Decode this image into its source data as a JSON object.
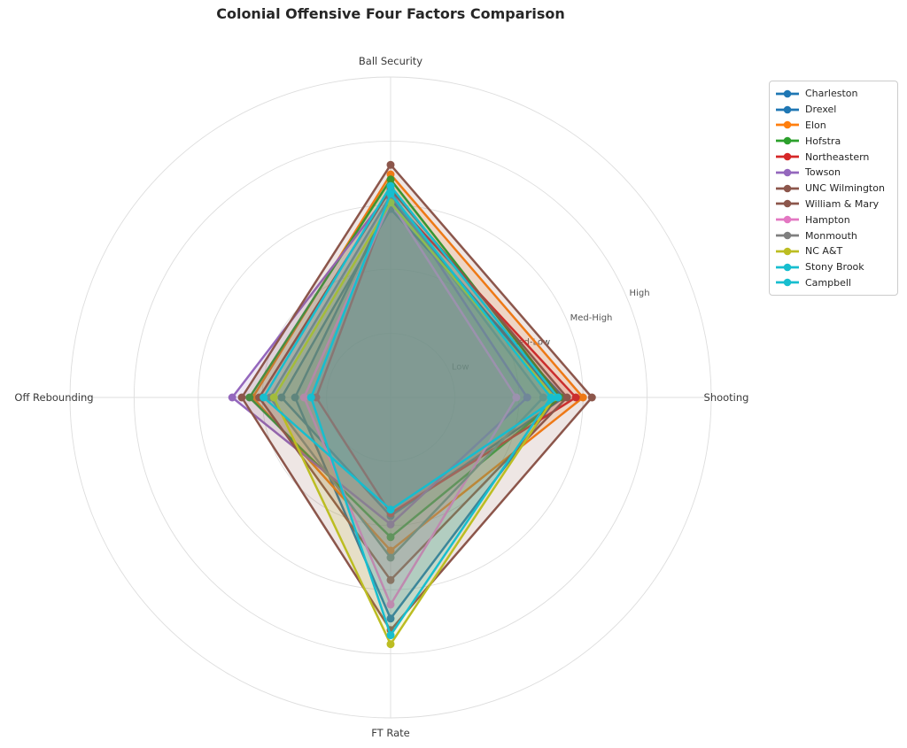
{
  "chart_data": {
    "type": "radar",
    "title": "Colonial Offensive Four Factors Comparison",
    "axes": [
      "Ball Security",
      "Shooting",
      "FT Rate",
      "Off Rebounding"
    ],
    "radial_ticks": {
      "values": [
        1,
        2,
        3,
        4
      ],
      "labels": [
        "Low",
        "Med-Low",
        "Med-High",
        "High"
      ]
    },
    "rmax": 5,
    "grid": true,
    "legend_position": "upper right",
    "series": [
      {
        "name": "Charleston",
        "color": "#1f77b4",
        "values": [
          2.94,
          2.7,
          1.85,
          1.7
        ]
      },
      {
        "name": "Drexel",
        "color": "#1f77b4",
        "values": [
          3.1,
          2.6,
          3.45,
          1.49
        ]
      },
      {
        "name": "Elon",
        "color": "#ff7f0e",
        "values": [
          3.48,
          3.0,
          2.39,
          2.15
        ]
      },
      {
        "name": "Hofstra",
        "color": "#2ca02c",
        "values": [
          3.4,
          2.65,
          2.18,
          2.2
        ]
      },
      {
        "name": "Northeastern",
        "color": "#d62728",
        "values": [
          3.12,
          2.89,
          1.81,
          1.16
        ]
      },
      {
        "name": "Towson",
        "color": "#9467bd",
        "values": [
          3.22,
          2.13,
          1.98,
          2.47
        ]
      },
      {
        "name": "UNC Wilmington",
        "color": "#8c564b",
        "values": [
          3.63,
          3.14,
          3.63,
          2.32
        ]
      },
      {
        "name": "William & Mary",
        "color": "#8c564b",
        "values": [
          3.25,
          2.75,
          2.85,
          2.05
        ]
      },
      {
        "name": "Hampton",
        "color": "#e377c2",
        "values": [
          3.05,
          1.96,
          3.23,
          1.35
        ]
      },
      {
        "name": "Monmouth",
        "color": "#7f7f7f",
        "values": [
          3.15,
          2.38,
          2.5,
          1.88
        ]
      },
      {
        "name": "NC A&T",
        "color": "#bcbd22",
        "values": [
          3.04,
          2.55,
          3.85,
          1.82
        ]
      },
      {
        "name": "Stony Brook",
        "color": "#17becf",
        "values": [
          3.3,
          2.61,
          1.75,
          1.98
        ]
      },
      {
        "name": "Campbell",
        "color": "#17becf",
        "values": [
          3.18,
          2.5,
          3.71,
          1.24
        ]
      }
    ],
    "style": {
      "grid_color": "#dddddd",
      "tick_label_color": "#555555",
      "axis_label_color": "#3a3a3a",
      "title_color": "#262626",
      "fill_opacity": 0.15,
      "line_width": 2.5,
      "marker_radius": 4.5
    }
  }
}
